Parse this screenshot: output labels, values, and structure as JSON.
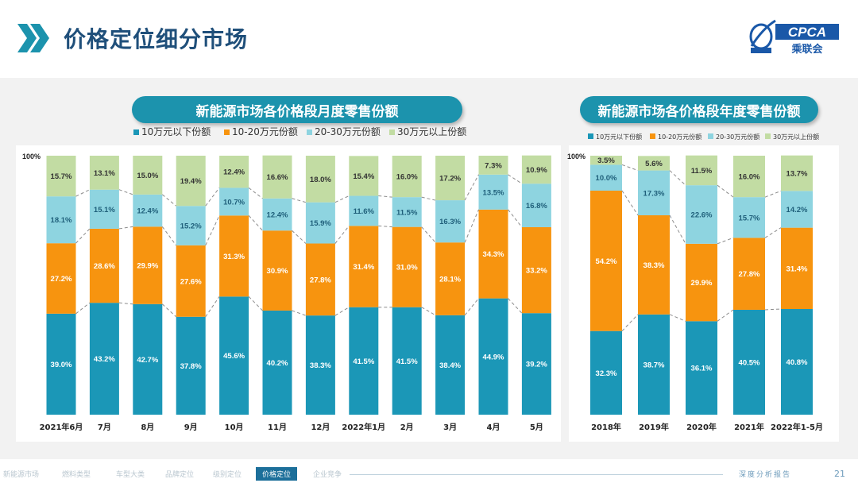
{
  "header": {
    "title": "价格定位细分市场",
    "logo_text": "CPCA",
    "logo_sub": "乘联会"
  },
  "colors": {
    "seg1": "#1b97b7",
    "seg2": "#f7940f",
    "seg3": "#8ed4e0",
    "seg4": "#c2dca3",
    "pill": "#1c93ad"
  },
  "chart_data": [
    {
      "type": "bar",
      "stacked": true,
      "title": "新能源市场各价格段月度零售份额",
      "y_top_label": "100%",
      "categories": [
        "2021年6月",
        "7月",
        "8月",
        "9月",
        "10月",
        "11月",
        "12月",
        "2022年1月",
        "2月",
        "3月",
        "4月",
        "5月"
      ],
      "series": [
        {
          "name": "10万元以下份额",
          "values": [
            39.0,
            43.2,
            42.7,
            37.8,
            45.6,
            40.2,
            38.3,
            41.5,
            41.5,
            38.4,
            44.9,
            39.2
          ]
        },
        {
          "name": "10-20万元份额",
          "values": [
            27.2,
            28.6,
            29.9,
            27.6,
            31.3,
            30.9,
            27.8,
            31.4,
            31.0,
            28.1,
            34.3,
            33.2
          ]
        },
        {
          "name": "20-30万元份额",
          "values": [
            18.1,
            15.1,
            12.4,
            15.2,
            10.7,
            12.4,
            15.9,
            11.6,
            11.5,
            16.3,
            13.5,
            16.8
          ]
        },
        {
          "name": "30万元以上份额",
          "values": [
            15.7,
            13.1,
            15.0,
            19.4,
            12.4,
            16.6,
            18.0,
            15.4,
            16.0,
            17.2,
            7.3,
            10.9
          ]
        }
      ],
      "ylim": [
        0,
        100
      ],
      "legend": "top"
    },
    {
      "type": "bar",
      "stacked": true,
      "title": "新能源市场各价格段年度零售份额",
      "y_top_label": "100%",
      "categories": [
        "2018年",
        "2019年",
        "2020年",
        "2021年",
        "2022年1-5月"
      ],
      "series": [
        {
          "name": "10万元以下份额",
          "values": [
            32.3,
            38.7,
            36.1,
            40.5,
            40.8
          ]
        },
        {
          "name": "10-20万元份额",
          "values": [
            54.2,
            38.3,
            29.9,
            27.8,
            31.4
          ]
        },
        {
          "name": "20-30万元份额",
          "values": [
            10.0,
            17.3,
            22.6,
            15.7,
            14.2
          ]
        },
        {
          "name": "30万元以上份额",
          "values": [
            3.5,
            5.6,
            11.5,
            16.0,
            13.7
          ]
        }
      ],
      "ylim": [
        0,
        100
      ],
      "legend": "top"
    }
  ],
  "footer": {
    "tabs": [
      "新能源市场",
      "燃料类型",
      "车型大类",
      "品牌定位",
      "级别定位",
      "价格定位",
      "企业竞争"
    ],
    "active_index": 5,
    "report_label": "深度分析报告",
    "page_number": "21"
  }
}
